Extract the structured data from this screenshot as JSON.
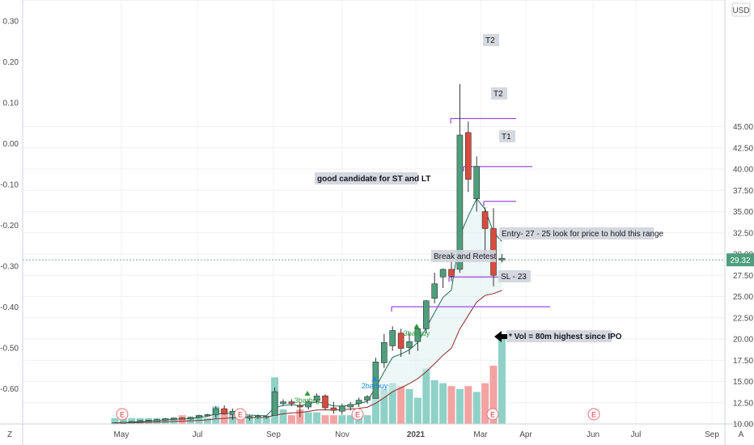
{
  "chart_data": {
    "type": "candlestick",
    "currency": "USD",
    "left_axis": {
      "ticks": [
        "0.30",
        "0.20",
        "0.10",
        "0.00",
        "-0.10",
        "-0.20",
        "-0.30",
        "-0.40",
        "-0.50",
        "-0.60"
      ],
      "values": [
        0.3,
        0.2,
        0.1,
        0.0,
        -0.1,
        -0.2,
        -0.3,
        -0.4,
        -0.5,
        -0.6
      ]
    },
    "right_axis": {
      "ticks": [
        "45.00",
        "42.50",
        "40.00",
        "37.50",
        "35.00",
        "32.50",
        "30.00",
        "27.50",
        "25.00",
        "22.50",
        "20.00",
        "17.50",
        "15.00",
        "12.50",
        "10.00"
      ],
      "values": [
        45,
        42.5,
        40,
        37.5,
        35,
        32.5,
        30,
        27.5,
        25,
        22.5,
        20,
        17.5,
        15,
        12.5,
        10
      ]
    },
    "x_ticks": [
      "May",
      "Jul",
      "Sep",
      "Nov",
      "2021",
      "Mar",
      "Apr",
      "Jun",
      "Jul",
      "Sep"
    ],
    "last_price": "29.32",
    "candles": [
      {
        "o": 10.1,
        "h": 10.2,
        "l": 10.05,
        "c": 10.12
      },
      {
        "o": 10.1,
        "h": 10.25,
        "l": 10.05,
        "c": 10.2
      },
      {
        "o": 10.2,
        "h": 10.35,
        "l": 10.15,
        "c": 10.3
      },
      {
        "o": 10.3,
        "h": 10.45,
        "l": 10.2,
        "c": 10.4
      },
      {
        "o": 10.4,
        "h": 10.5,
        "l": 10.3,
        "c": 10.45
      },
      {
        "o": 10.45,
        "h": 10.6,
        "l": 10.35,
        "c": 10.5
      },
      {
        "o": 10.5,
        "h": 10.7,
        "l": 10.4,
        "c": 10.6
      },
      {
        "o": 10.6,
        "h": 10.75,
        "l": 10.5,
        "c": 10.7
      },
      {
        "o": 10.7,
        "h": 10.8,
        "l": 10.55,
        "c": 10.6
      },
      {
        "o": 10.6,
        "h": 10.85,
        "l": 10.5,
        "c": 10.8
      },
      {
        "o": 10.8,
        "h": 11.1,
        "l": 10.7,
        "c": 11.0
      },
      {
        "o": 11.0,
        "h": 11.2,
        "l": 10.9,
        "c": 11.1
      },
      {
        "o": 11.1,
        "h": 12.1,
        "l": 10.7,
        "c": 11.8
      },
      {
        "o": 11.8,
        "h": 12.2,
        "l": 11.1,
        "c": 11.2
      },
      {
        "o": 11.1,
        "h": 11.8,
        "l": 10.5,
        "c": 11.5
      },
      {
        "o": 11.2,
        "h": 11.5,
        "l": 10.6,
        "c": 10.8
      },
      {
        "o": 10.7,
        "h": 11.0,
        "l": 10.4,
        "c": 10.9
      },
      {
        "o": 10.8,
        "h": 11.1,
        "l": 10.6,
        "c": 10.9
      },
      {
        "o": 10.8,
        "h": 11.0,
        "l": 10.6,
        "c": 10.9
      },
      {
        "o": 11.0,
        "h": 14.3,
        "l": 11.0,
        "c": 13.8
      },
      {
        "o": 12.4,
        "h": 12.9,
        "l": 12.1,
        "c": 12.6
      },
      {
        "o": 12.6,
        "h": 12.9,
        "l": 12.1,
        "c": 12.4
      },
      {
        "o": 12.2,
        "h": 12.6,
        "l": 10.8,
        "c": 12.0
      },
      {
        "o": 12.0,
        "h": 12.8,
        "l": 11.7,
        "c": 12.6
      },
      {
        "o": 12.8,
        "h": 13.6,
        "l": 12.4,
        "c": 13.3
      },
      {
        "o": 13.3,
        "h": 13.5,
        "l": 11.7,
        "c": 11.9
      },
      {
        "o": 11.9,
        "h": 12.6,
        "l": 11.2,
        "c": 11.6
      },
      {
        "o": 11.5,
        "h": 12.4,
        "l": 11.1,
        "c": 12.1
      },
      {
        "o": 12.0,
        "h": 12.6,
        "l": 11.6,
        "c": 12.3
      },
      {
        "o": 12.4,
        "h": 13.1,
        "l": 12.0,
        "c": 12.8
      },
      {
        "o": 12.8,
        "h": 13.4,
        "l": 12.4,
        "c": 13.2
      },
      {
        "o": 13.0,
        "h": 17.8,
        "l": 13.0,
        "c": 17.3
      },
      {
        "o": 17.2,
        "h": 20.6,
        "l": 16.6,
        "c": 19.6
      },
      {
        "o": 19.2,
        "h": 21.5,
        "l": 18.6,
        "c": 21.0
      },
      {
        "o": 20.7,
        "h": 21.2,
        "l": 17.9,
        "c": 18.9
      },
      {
        "o": 19.0,
        "h": 20.7,
        "l": 18.2,
        "c": 19.7
      },
      {
        "o": 19.7,
        "h": 21.5,
        "l": 18.6,
        "c": 21.2
      },
      {
        "o": 21.2,
        "h": 24.6,
        "l": 20.7,
        "c": 24.5
      },
      {
        "o": 24.8,
        "h": 27.8,
        "l": 24.2,
        "c": 26.5
      },
      {
        "o": 27.3,
        "h": 28.3,
        "l": 26.0,
        "c": 28.2
      },
      {
        "o": 28.2,
        "h": 29.2,
        "l": 26.8,
        "c": 27.4
      },
      {
        "o": 28.2,
        "h": 50.0,
        "l": 27.8,
        "c": 44.0
      },
      {
        "o": 44.3,
        "h": 45.6,
        "l": 37.3,
        "c": 38.8
      },
      {
        "o": 36.5,
        "h": 41.5,
        "l": 35.0,
        "c": 40.3
      },
      {
        "o": 35.0,
        "h": 35.5,
        "l": 30.1,
        "c": 33.0
      },
      {
        "o": 33.0,
        "h": 35.4,
        "l": 26.2,
        "c": 27.5
      },
      {
        "o": 29.3,
        "h": 30.0,
        "l": 29.0,
        "c": 29.5
      }
    ],
    "volume": [
      2,
      2,
      2,
      2,
      2,
      2,
      2,
      2,
      3,
      2,
      3,
      2,
      6,
      5,
      3,
      2,
      2,
      2,
      2,
      16,
      5,
      3,
      5,
      4,
      4,
      3,
      3,
      3,
      3,
      4,
      3,
      10,
      12,
      14,
      13,
      12,
      9,
      19,
      15,
      14,
      13,
      12,
      13,
      11,
      14,
      20,
      30
    ],
    "moving_averages": [
      {
        "name": "",
        "color": "#1d6c56"
      },
      {
        "name": "",
        "color": "#8b2a2a"
      }
    ],
    "signals": [
      {
        "text": "3barbuy",
        "color": "#2e9b3a"
      },
      {
        "text": "2barbuy",
        "color": "#1e88e5"
      },
      {
        "text": "3barbuy",
        "color": "#2e9b3a"
      }
    ],
    "annotations": [
      {
        "key": "t2_top",
        "text": "T2"
      },
      {
        "key": "t2_mid",
        "text": "T2"
      },
      {
        "key": "t1",
        "text": "T1"
      },
      {
        "key": "good",
        "text": "good candidate for ST and LT"
      },
      {
        "key": "entry",
        "text": "Entry- 27 - 25 look for price to hold this range"
      },
      {
        "key": "break",
        "text": "Break and Retest"
      },
      {
        "key": "sl",
        "text": "SL - 23"
      },
      {
        "key": "vol",
        "text": "* Vol = 80m highest since IPO"
      }
    ],
    "earnings_marker": "E",
    "bottom_left_label": "Z",
    "bottom_right_label": "A",
    "colors": {
      "up": "#4e9f7d",
      "down": "#d94b3c",
      "up_volume": "#8fd1c6",
      "down_volume": "#f4a3a3",
      "level_line": "#9c4be0"
    }
  }
}
